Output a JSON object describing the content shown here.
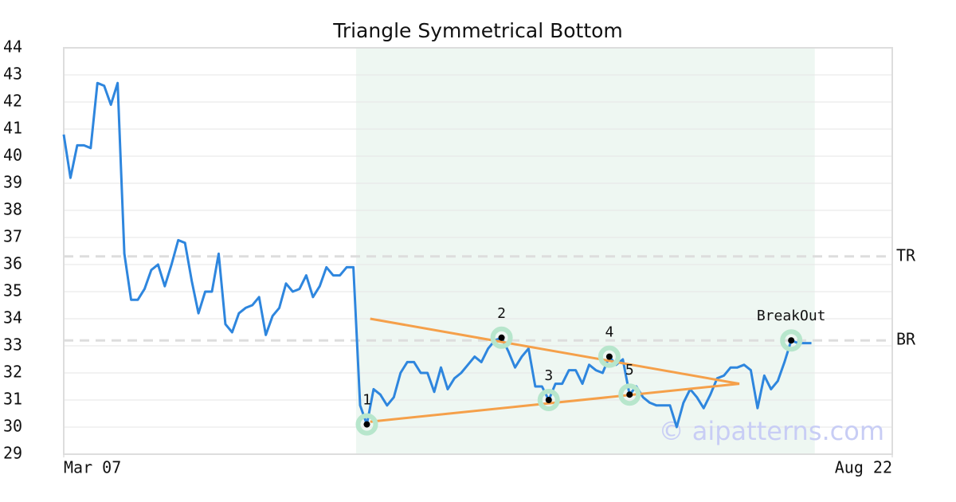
{
  "chart_data": {
    "type": "line",
    "title": "Triangle Symmetrical Bottom",
    "watermark": "© aipatterns.com",
    "xlim": [
      0,
      123
    ],
    "xticks": [
      {
        "value": 0,
        "label": "Mar 07"
      },
      {
        "value": 123,
        "label": "Aug 22"
      }
    ],
    "ylim": [
      29,
      44
    ],
    "yticks": [
      29,
      30,
      31,
      32,
      33,
      34,
      35,
      36,
      37,
      38,
      39,
      40,
      41,
      42,
      43,
      44
    ],
    "grid": true,
    "shaded_x": [
      43.4,
      111.5
    ],
    "series": [
      {
        "color": "#2e86de",
        "x": [
          0,
          1,
          2,
          3,
          4,
          5,
          6,
          7,
          8,
          9,
          10,
          11,
          12,
          13,
          14,
          15,
          16,
          17,
          18,
          19,
          20,
          21,
          22,
          23,
          24,
          25,
          26,
          27,
          28,
          29,
          30,
          31,
          32,
          33,
          34,
          35,
          36,
          37,
          38,
          39,
          40,
          41,
          42,
          43,
          44,
          45,
          46,
          47,
          48,
          49,
          50,
          51,
          52,
          53,
          54,
          55,
          56,
          57,
          58,
          59,
          60,
          61,
          62,
          63,
          64,
          65,
          66,
          67,
          68,
          69,
          70,
          71,
          72,
          73,
          74,
          75,
          76,
          77,
          78,
          79,
          80,
          81,
          82,
          83,
          84,
          85,
          86,
          87,
          88,
          89,
          90,
          91,
          92,
          93,
          94,
          95,
          96,
          97,
          98,
          99,
          100,
          101,
          102,
          103,
          104,
          105,
          106,
          107,
          108,
          109,
          110,
          111
        ],
        "values": [
          40.8,
          39.2,
          40.4,
          40.4,
          40.3,
          42.7,
          42.6,
          41.9,
          42.7,
          36.4,
          34.7,
          34.7,
          35.1,
          35.8,
          36.0,
          35.2,
          36.0,
          36.9,
          36.8,
          35.4,
          34.2,
          35.0,
          35.0,
          36.4,
          33.8,
          33.5,
          34.2,
          34.4,
          34.5,
          34.8,
          33.4,
          34.1,
          34.4,
          35.3,
          35.0,
          35.1,
          35.6,
          34.8,
          35.2,
          35.9,
          35.6,
          35.6,
          35.9,
          35.9,
          30.8,
          30.1,
          31.4,
          31.2,
          30.8,
          31.1,
          32.0,
          32.4,
          32.4,
          32.0,
          32.0,
          31.3,
          32.2,
          31.4,
          31.8,
          32.0,
          32.3,
          32.6,
          32.4,
          32.9,
          33.2,
          33.3,
          32.8,
          32.2,
          32.6,
          32.9,
          31.5,
          31.5,
          31.0,
          31.6,
          31.6,
          32.1,
          32.1,
          31.6,
          32.3,
          32.1,
          32.0,
          32.6,
          32.3,
          32.5,
          31.2,
          31.5,
          31.1,
          30.9,
          30.8,
          30.8,
          30.8,
          30.0,
          30.9,
          31.4,
          31.1,
          30.7,
          31.2,
          31.8,
          31.9,
          32.2,
          32.2,
          32.3,
          32.1,
          30.7,
          31.9,
          31.4,
          31.7,
          32.4,
          33.2,
          33.1,
          33.1,
          33.1
        ]
      }
    ],
    "trendlines": [
      {
        "color": "#f5a04a",
        "x": [
          45.5,
          100.3
        ],
        "y": [
          34.0,
          31.6
        ]
      },
      {
        "color": "#f5a04a",
        "x": [
          45.5,
          100.3
        ],
        "y": [
          30.2,
          31.6
        ]
      }
    ],
    "reference_lines": [
      {
        "label": "TR",
        "value": 36.3
      },
      {
        "label": "BR",
        "value": 33.2
      }
    ],
    "points": [
      {
        "label": "1",
        "x": 45,
        "y": 30.1
      },
      {
        "label": "2",
        "x": 65,
        "y": 33.3
      },
      {
        "label": "3",
        "x": 72,
        "y": 31.0
      },
      {
        "label": "4",
        "x": 81,
        "y": 32.6
      },
      {
        "label": "5",
        "x": 84,
        "y": 31.2
      },
      {
        "label": "BreakOut",
        "x": 108,
        "y": 33.2
      }
    ]
  }
}
